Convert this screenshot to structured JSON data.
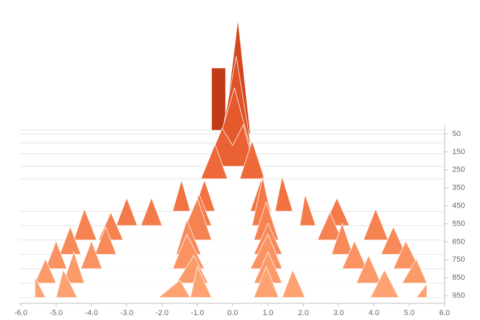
{
  "chart_data": {
    "type": "ridgeline",
    "xlim": [
      -6,
      6
    ],
    "xticks": [
      {
        "value": -6,
        "label": "-6.0"
      },
      {
        "value": -5,
        "label": "-5.0"
      },
      {
        "value": -4,
        "label": "-4.0"
      },
      {
        "value": -3,
        "label": "-3.0"
      },
      {
        "value": -2,
        "label": "-2.0"
      },
      {
        "value": -1,
        "label": "-1.0"
      },
      {
        "value": 0,
        "label": "0.0"
      },
      {
        "value": 1,
        "label": "1.0"
      },
      {
        "value": 2,
        "label": "2.0"
      },
      {
        "value": 3,
        "label": "3.0"
      },
      {
        "value": 4,
        "label": "4.0"
      },
      {
        "value": 5,
        "label": "5.0"
      },
      {
        "value": 6,
        "label": "6.0"
      }
    ],
    "ylim": [
      0,
      1000
    ],
    "yticks": [
      50,
      150,
      250,
      350,
      450,
      550,
      650,
      750,
      850,
      950
    ],
    "zlim": [
      0,
      200
    ],
    "series": [
      {
        "step": 30,
        "color": "#c23b17",
        "x": [
          -0.6,
          -0.6,
          -0.2,
          -0.2
        ],
        "values": [
          0,
          90,
          90,
          0
        ]
      },
      {
        "step": 50,
        "color": "#d4471f",
        "x": [
          -0.25,
          0.15,
          0.5
        ],
        "values": [
          0,
          165,
          0
        ]
      },
      {
        "step": 100,
        "color": "#dd5227",
        "x": [
          -0.35,
          0.1,
          0.5
        ],
        "values": [
          0,
          125,
          0
        ]
      },
      {
        "step": 160,
        "color": "#e45a2c",
        "x": [
          -0.5,
          0.05,
          0.55
        ],
        "values": [
          0,
          95,
          0
        ]
      },
      {
        "step": 230,
        "color": "#ea6233",
        "x": [
          -0.75,
          -0.3,
          0.0,
          0.3,
          0.6
        ],
        "values": [
          0,
          55,
          30,
          60,
          0
        ]
      },
      {
        "step": 300,
        "color": "#ee6a3a",
        "x": [
          -0.9,
          -0.5,
          -0.15,
          0.2,
          0.55,
          0.9
        ],
        "values": [
          0,
          50,
          0,
          0,
          55,
          0
        ]
      },
      {
        "step": 480,
        "color": "#f27242",
        "x": [
          -1.7,
          -1.45,
          -1.2,
          -1.1,
          -0.8,
          -0.5,
          0.5,
          0.8,
          1.1,
          1.2,
          1.4,
          1.7
        ],
        "values": [
          0,
          45,
          0,
          0,
          45,
          0,
          0,
          45,
          0,
          0,
          50,
          0
        ]
      },
      {
        "step": 560,
        "color": "#f47a4a",
        "x": [
          -3.3,
          -3.0,
          -2.7,
          -2.6,
          -2.3,
          -2.0,
          -1.35,
          -0.95,
          -0.6,
          0.55,
          0.85,
          1.15,
          1.9,
          2.05,
          2.35,
          2.6,
          2.95,
          3.3
        ],
        "values": [
          0,
          40,
          0,
          0,
          40,
          0,
          0,
          45,
          0,
          0,
          70,
          0,
          0,
          45,
          0,
          0,
          40,
          0
        ]
      },
      {
        "step": 640,
        "color": "#f68252",
        "x": [
          -4.5,
          -4.2,
          -3.85,
          -3.8,
          -3.45,
          -3.1,
          -1.5,
          -1.0,
          -0.6,
          0.6,
          0.95,
          1.3,
          2.4,
          2.75,
          3.1,
          3.7,
          4.05,
          4.4
        ],
        "values": [
          0,
          45,
          0,
          0,
          40,
          0,
          0,
          60,
          0,
          0,
          55,
          0,
          0,
          40,
          0,
          0,
          45,
          0
        ]
      },
      {
        "step": 720,
        "color": "#f88a5a",
        "x": [
          -4.9,
          -4.6,
          -4.3,
          -3.9,
          -3.6,
          -3.3,
          -1.6,
          -1.3,
          -0.9,
          0.6,
          1.0,
          1.4,
          2.8,
          3.1,
          3.4,
          4.2,
          4.55,
          4.9
        ],
        "values": [
          0,
          40,
          0,
          0,
          40,
          0,
          0,
          50,
          0,
          0,
          45,
          0,
          0,
          45,
          0,
          0,
          40,
          0
        ]
      },
      {
        "step": 800,
        "color": "#fa9262",
        "x": [
          -5.3,
          -5.0,
          -4.7,
          -4.3,
          -4.0,
          -3.7,
          -1.7,
          -1.3,
          -0.8,
          0.5,
          1.0,
          1.4,
          3.1,
          3.45,
          3.8,
          4.55,
          4.9,
          5.3
        ],
        "values": [
          0,
          40,
          0,
          0,
          40,
          0,
          0,
          50,
          0,
          0,
          50,
          0,
          0,
          40,
          0,
          0,
          40,
          0
        ]
      },
      {
        "step": 880,
        "color": "#fc9a6a",
        "x": [
          -5.6,
          -5.3,
          -5.0,
          -4.8,
          -4.5,
          -4.2,
          -1.6,
          -1.1,
          -0.7,
          0.6,
          1.0,
          1.4,
          3.5,
          3.85,
          4.2,
          4.8,
          5.2,
          5.5
        ],
        "values": [
          0,
          35,
          0,
          0,
          45,
          0,
          0,
          40,
          0,
          0,
          45,
          0,
          0,
          40,
          0,
          0,
          35,
          0
        ]
      },
      {
        "step": 960,
        "color": "#fea272",
        "x": [
          -5.6,
          -5.6,
          -5.3,
          -5.0,
          -4.8,
          -4.4,
          -2.1,
          -1.5,
          -1.2,
          -1.0,
          -0.6,
          0.6,
          0.95,
          1.3,
          1.4,
          1.7,
          2.05,
          3.9,
          4.3,
          4.7,
          5.2,
          5.5,
          5.5
        ],
        "values": [
          0,
          30,
          0,
          0,
          40,
          0,
          0,
          25,
          0,
          45,
          0,
          0,
          45,
          0,
          0,
          40,
          0,
          0,
          40,
          0,
          0,
          20,
          0
        ]
      }
    ]
  }
}
